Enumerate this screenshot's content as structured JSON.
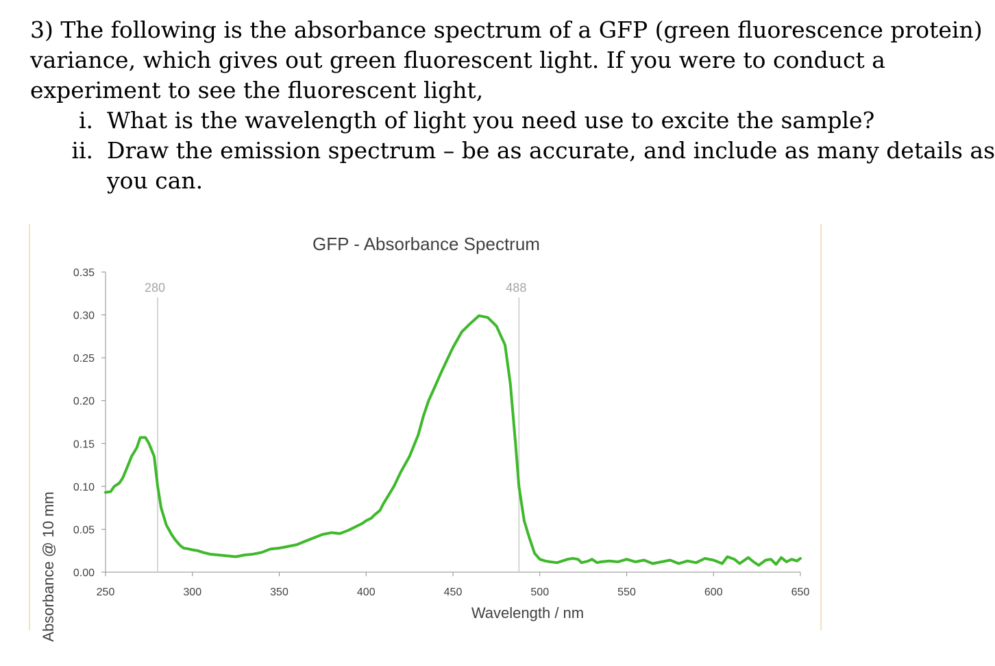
{
  "question": {
    "lines": [
      "3) The following is the absorbance spectrum of a GFP (green fluorescence protein)",
      "variance, which gives out green fluorescent light. If you were to conduct a",
      "experiment to see the fluorescent light,"
    ],
    "items": [
      {
        "marker": "i.",
        "text": "What is the wavelength of light you need use to excite the sample?"
      },
      {
        "marker": "ii.",
        "text": "Draw the emission spectrum – be as accurate, and include as many details as"
      },
      {
        "marker": "",
        "text": "you can."
      }
    ]
  },
  "chart_data": {
    "type": "line",
    "title": "GFP - Absorbance Spectrum",
    "xlabel": "Wavelength / nm",
    "ylabel": "Absorbance @ 10 mm",
    "xlim": [
      250,
      650
    ],
    "ylim": [
      0,
      0.35
    ],
    "xticks": [
      "250",
      "300",
      "350",
      "400",
      "450",
      "500",
      "550",
      "600",
      "650"
    ],
    "yticks": [
      "0.00",
      "0.05",
      "0.10",
      "0.15",
      "0.20",
      "0.25",
      "0.30",
      "0.35"
    ],
    "grid": false,
    "line_color": "#3fb82c",
    "annotations": [
      {
        "x": 280,
        "label": "280"
      },
      {
        "x": 488,
        "label": "488"
      }
    ],
    "series": [
      {
        "x": [
          250,
          253,
          255,
          258,
          260,
          263,
          265,
          268,
          270,
          273,
          275,
          278,
          280,
          282,
          285,
          288,
          290,
          293,
          295,
          298,
          300,
          303,
          306,
          310,
          315,
          320,
          325,
          330,
          335,
          340,
          345,
          350,
          355,
          360,
          365,
          370,
          375,
          380,
          385,
          390,
          395,
          398,
          400,
          403,
          405,
          408,
          410,
          413,
          416,
          420,
          425,
          430,
          433,
          436,
          440,
          443,
          446,
          450,
          455,
          460,
          465,
          470,
          475,
          480,
          483,
          486,
          488,
          491,
          494,
          497,
          500,
          503,
          506,
          510,
          513,
          516,
          519,
          522,
          524,
          526,
          528,
          530,
          533,
          535,
          540,
          545,
          550,
          555,
          560,
          565,
          570,
          575,
          580,
          585,
          590,
          595,
          600,
          605,
          608,
          612,
          615,
          620,
          623,
          626,
          630,
          633,
          636,
          639,
          642,
          645,
          648,
          650
        ],
        "values": [
          0.093,
          0.094,
          0.1,
          0.104,
          0.11,
          0.125,
          0.135,
          0.145,
          0.157,
          0.157,
          0.15,
          0.135,
          0.1,
          0.075,
          0.055,
          0.044,
          0.038,
          0.031,
          0.028,
          0.027,
          0.026,
          0.025,
          0.023,
          0.021,
          0.02,
          0.019,
          0.018,
          0.02,
          0.021,
          0.023,
          0.027,
          0.028,
          0.03,
          0.032,
          0.036,
          0.04,
          0.044,
          0.046,
          0.045,
          0.049,
          0.054,
          0.057,
          0.06,
          0.063,
          0.067,
          0.072,
          0.08,
          0.09,
          0.1,
          0.117,
          0.135,
          0.16,
          0.182,
          0.2,
          0.218,
          0.232,
          0.245,
          0.262,
          0.28,
          0.29,
          0.299,
          0.297,
          0.287,
          0.265,
          0.22,
          0.15,
          0.1,
          0.06,
          0.04,
          0.022,
          0.015,
          0.013,
          0.012,
          0.011,
          0.013,
          0.015,
          0.016,
          0.015,
          0.011,
          0.012,
          0.013,
          0.015,
          0.011,
          0.012,
          0.013,
          0.012,
          0.015,
          0.012,
          0.014,
          0.01,
          0.012,
          0.014,
          0.01,
          0.013,
          0.011,
          0.016,
          0.014,
          0.01,
          0.018,
          0.015,
          0.01,
          0.017,
          0.012,
          0.008,
          0.014,
          0.015,
          0.009,
          0.017,
          0.012,
          0.015,
          0.013,
          0.016
        ]
      }
    ]
  }
}
